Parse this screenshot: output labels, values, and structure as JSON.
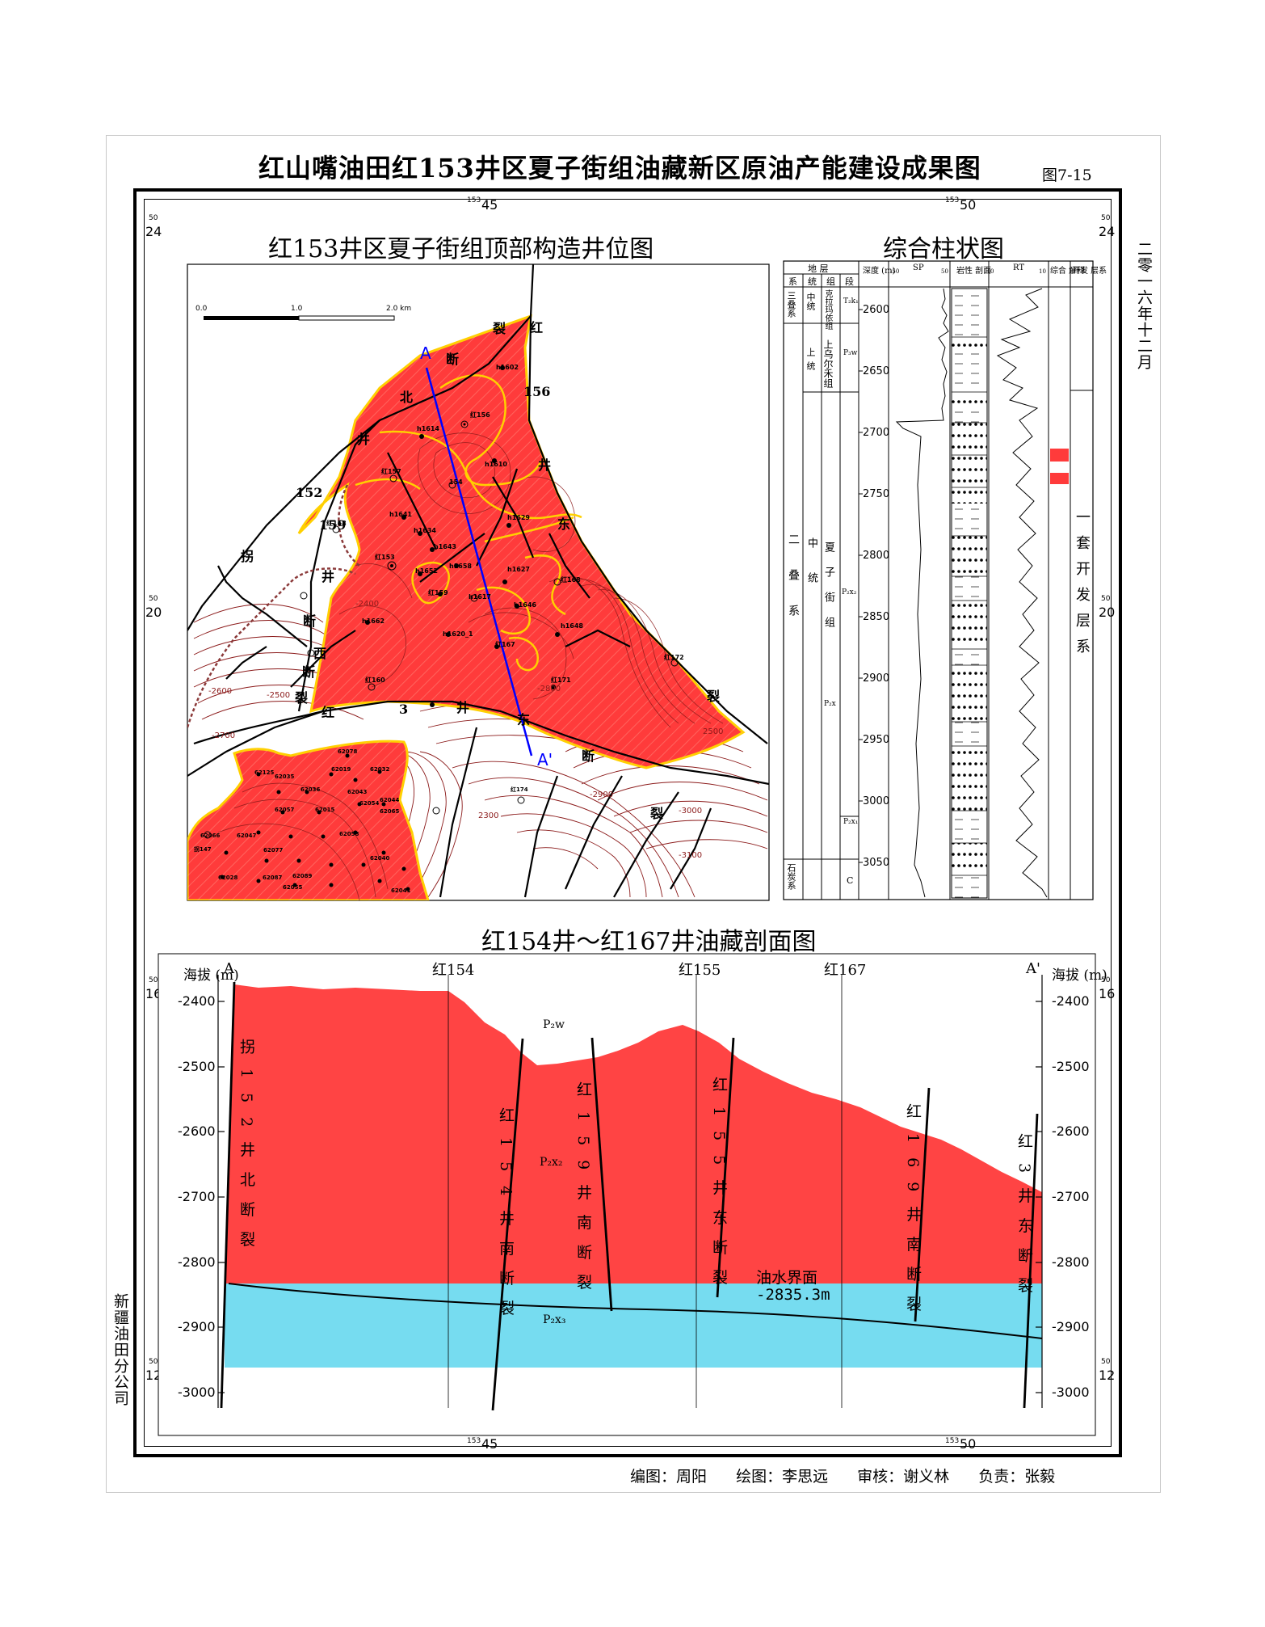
{
  "title": "红山嘴油田红153井区夏子街组油藏新区原油产能建设成果图",
  "figure_number": "图7-15",
  "date_vertical": "二零一六年十二月",
  "company_vertical": "新疆油田分公司",
  "frame_ticks": {
    "top": [
      "153",
      "45",
      "153",
      "50"
    ],
    "side": [
      "50",
      "24",
      "50",
      "20",
      "50",
      "16",
      "50",
      "12"
    ]
  },
  "map": {
    "title": "红153井区夏子街组顶部构造井位图",
    "scale": {
      "labels": [
        "0.0",
        "1.0",
        "2.0 km"
      ]
    },
    "section_line": {
      "start": "A",
      "end": "A'"
    },
    "fault_labels": [
      "裂",
      "红",
      "断",
      "北",
      "156",
      "井",
      "井",
      "152",
      "东",
      "拐",
      "159",
      "井",
      "断",
      "西",
      "断",
      "裂",
      "红",
      "3",
      "井",
      "东",
      "断",
      "裂",
      "裂"
    ],
    "wells_left": [
      "h1602",
      "红156",
      "h1614",
      "h1610",
      "红157",
      "154",
      "h1641",
      "h1634",
      "h1643",
      "红153",
      "h1652",
      "h1658",
      "红159",
      "h1617",
      "h1662",
      "h1620_1",
      "h1627",
      "h1629",
      "红168",
      "h1646",
      "h1648",
      "红167",
      "红172",
      "红171",
      "红160",
      "红158"
    ],
    "wells_lower": [
      "62078",
      "62125",
      "62035",
      "62019",
      "62032",
      "62036",
      "62043",
      "62044",
      "62057",
      "62015",
      "62054",
      "62065",
      "62066",
      "62047",
      "62077",
      "62058",
      "62040",
      "62087",
      "62089",
      "62055",
      "62041",
      "红174",
      "拐147",
      "62028"
    ],
    "contours": [
      "-2400",
      "-2500",
      "-2600",
      "-2700",
      "-2800",
      "-2900",
      "-3000",
      "-3100",
      "2300",
      "2500"
    ],
    "colors": {
      "oil": "#ff3b3b",
      "oil_border": "#ffd000",
      "contour": "#8b1a1a",
      "section_line": "#0000ff",
      "fault": "#000000"
    }
  },
  "column": {
    "title": "综合柱状图",
    "headers": [
      "地 层",
      "系",
      "统",
      "组",
      "段",
      "深度 (m)",
      "SP",
      "岩性 剖面",
      "RT",
      "综合 解释",
      "开发 层系"
    ],
    "units": {
      "system": [
        "三叠系",
        "二叠系",
        "石炭系"
      ],
      "series": [
        "中统",
        "上统",
        "中统"
      ],
      "formations": [
        "克拉玛依组",
        "上乌尔禾组",
        "夏子街组"
      ],
      "segments": [
        "T₂k₁",
        "P₃w",
        "P₂x₂",
        "P₂x₁",
        "P₂x",
        "C"
      ]
    },
    "depth_ticks": [
      "2600",
      "2650",
      "2700",
      "2750",
      "2800",
      "2850",
      "2900",
      "2950",
      "3000",
      "3050"
    ],
    "dev_layer": "一套开发层系",
    "sp_ticks": [
      "-50",
      "50"
    ],
    "rt_ticks": [
      "0",
      "10"
    ]
  },
  "section": {
    "title": "红154井～红167井油藏剖面图",
    "left_end": "A",
    "right_end": "A'",
    "axis_label": "海拔 (m)",
    "elevation_ticks": [
      "-2400",
      "-2500",
      "-2600",
      "-2700",
      "-2800",
      "-2900",
      "-3000"
    ],
    "wells": [
      "红154",
      "红155",
      "红167"
    ],
    "faults": [
      "拐152井北断裂",
      "红154井南断裂",
      "红159井南断裂",
      "红155井东断裂",
      "红169井南断裂",
      "红3井东断裂"
    ],
    "layers": [
      "P₂w",
      "P₂x₂",
      "P₂x₃"
    ],
    "owc_label": "油水界面",
    "owc_value": "-2835.3m",
    "colors": {
      "oil": "#ff4444",
      "water": "#76dcf0"
    }
  },
  "credits": {
    "editor": "编图：周阳",
    "drafter": "绘图：李思远",
    "reviewer": "审核：谢义林",
    "responsible": "负责：张毅"
  }
}
